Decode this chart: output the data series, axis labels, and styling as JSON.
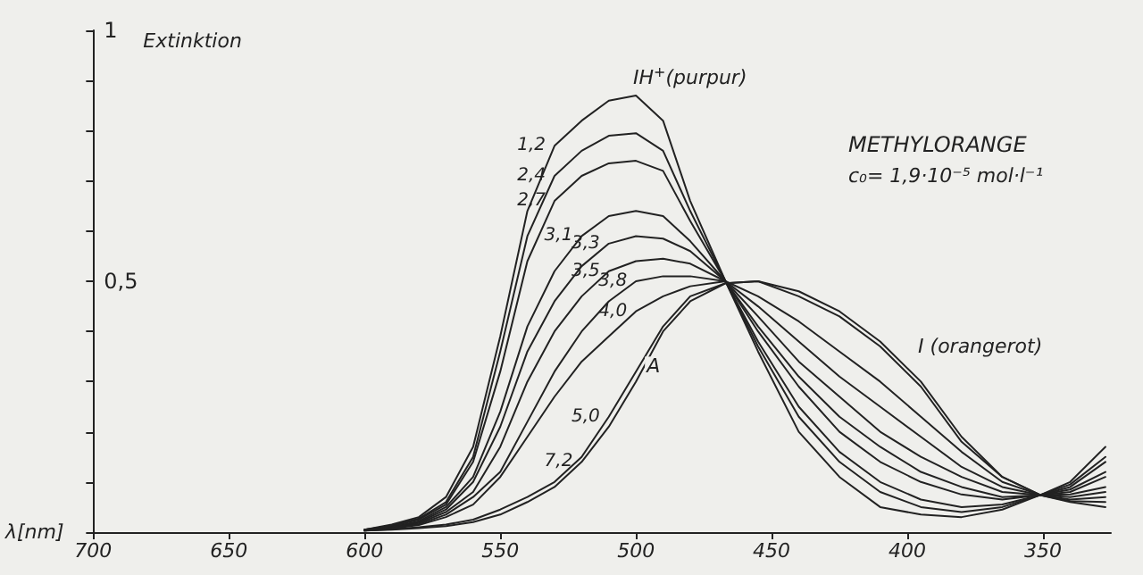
{
  "chart_data": {
    "type": "line",
    "title": "METHYLORANGE",
    "subtitle": "c₀= 1,9·10⁻⁵ mol·l⁻¹",
    "xlabel": "λ[nm]",
    "ylabel": "Extinktion",
    "x": [
      600,
      590,
      580,
      570,
      560,
      550,
      540,
      530,
      520,
      510,
      500,
      490,
      480,
      467,
      455,
      440,
      425,
      410,
      395,
      380,
      365,
      351,
      340,
      327
    ],
    "series": [
      {
        "name": "1,2",
        "color": "#222222",
        "values": [
          0.005,
          0.015,
          0.03,
          0.07,
          0.17,
          0.39,
          0.64,
          0.77,
          0.82,
          0.86,
          0.87,
          0.82,
          0.66,
          0.5,
          0.36,
          0.2,
          0.11,
          0.05,
          0.035,
          0.03,
          0.045,
          0.074,
          0.1,
          0.17
        ]
      },
      {
        "name": "2,4",
        "color": "#222222",
        "values": [
          0.005,
          0.013,
          0.027,
          0.06,
          0.15,
          0.36,
          0.59,
          0.71,
          0.76,
          0.79,
          0.795,
          0.76,
          0.64,
          0.5,
          0.37,
          0.23,
          0.14,
          0.08,
          0.05,
          0.04,
          0.05,
          0.074,
          0.095,
          0.15
        ]
      },
      {
        "name": "2,7",
        "color": "#222222",
        "values": [
          0.005,
          0.012,
          0.025,
          0.055,
          0.14,
          0.32,
          0.54,
          0.66,
          0.71,
          0.735,
          0.74,
          0.72,
          0.62,
          0.5,
          0.38,
          0.25,
          0.16,
          0.1,
          0.065,
          0.05,
          0.055,
          0.074,
          0.09,
          0.14
        ]
      },
      {
        "name": "3,1",
        "color": "#222222",
        "values": [
          0.004,
          0.01,
          0.022,
          0.05,
          0.11,
          0.24,
          0.41,
          0.52,
          0.59,
          0.63,
          0.64,
          0.63,
          0.58,
          0.5,
          0.4,
          0.29,
          0.2,
          0.14,
          0.1,
          0.075,
          0.065,
          0.074,
          0.085,
          0.12
        ]
      },
      {
        "name": "3,3",
        "color": "#222222",
        "values": [
          0.004,
          0.01,
          0.02,
          0.045,
          0.1,
          0.21,
          0.36,
          0.46,
          0.53,
          0.575,
          0.59,
          0.585,
          0.56,
          0.5,
          0.41,
          0.31,
          0.23,
          0.17,
          0.12,
          0.09,
          0.07,
          0.074,
          0.08,
          0.11
        ]
      },
      {
        "name": "3,5",
        "color": "#222222",
        "values": [
          0.004,
          0.009,
          0.018,
          0.04,
          0.08,
          0.17,
          0.3,
          0.4,
          0.47,
          0.52,
          0.54,
          0.545,
          0.535,
          0.5,
          0.43,
          0.34,
          0.27,
          0.2,
          0.15,
          0.11,
          0.08,
          0.074,
          0.075,
          0.09
        ]
      },
      {
        "name": "3,8",
        "color": "#222222",
        "values": [
          0.003,
          0.008,
          0.016,
          0.035,
          0.07,
          0.12,
          0.22,
          0.32,
          0.4,
          0.46,
          0.5,
          0.51,
          0.51,
          0.5,
          0.45,
          0.38,
          0.31,
          0.25,
          0.19,
          0.13,
          0.09,
          0.074,
          0.07,
          0.08
        ]
      },
      {
        "name": "4,0",
        "color": "#222222",
        "values": [
          0.003,
          0.007,
          0.014,
          0.03,
          0.055,
          0.11,
          0.19,
          0.27,
          0.34,
          0.39,
          0.44,
          0.47,
          0.49,
          0.5,
          0.47,
          0.42,
          0.36,
          0.3,
          0.23,
          0.16,
          0.1,
          0.074,
          0.065,
          0.07
        ]
      },
      {
        "name": "5,0",
        "color": "#222222",
        "values": [
          0.003,
          0.006,
          0.01,
          0.015,
          0.025,
          0.045,
          0.07,
          0.1,
          0.15,
          0.23,
          0.32,
          0.41,
          0.47,
          0.496,
          0.5,
          0.47,
          0.43,
          0.37,
          0.29,
          0.18,
          0.11,
          0.074,
          0.062,
          0.06
        ]
      },
      {
        "name": "7,2",
        "color": "#222222",
        "values": [
          0.003,
          0.005,
          0.008,
          0.012,
          0.02,
          0.035,
          0.06,
          0.09,
          0.14,
          0.21,
          0.3,
          0.4,
          0.46,
          0.496,
          0.5,
          0.48,
          0.44,
          0.38,
          0.3,
          0.19,
          0.11,
          0.074,
          0.06,
          0.05
        ]
      }
    ],
    "xlim": [
      700,
      325
    ],
    "xticks": [
      700,
      650,
      600,
      550,
      500,
      450,
      400,
      350
    ],
    "ylim": [
      0,
      1
    ],
    "yticks": [
      {
        "value": 0,
        "label": null
      },
      {
        "value": 0.1,
        "label": null
      },
      {
        "value": 0.2,
        "label": null
      },
      {
        "value": 0.3,
        "label": null
      },
      {
        "value": 0.4,
        "label": null
      },
      {
        "value": 0.5,
        "label": "0,5"
      },
      {
        "value": 0.6,
        "label": null
      },
      {
        "value": 0.7,
        "label": null
      },
      {
        "value": 0.8,
        "label": null
      },
      {
        "value": 0.9,
        "label": null
      },
      {
        "value": 1,
        "label": "1"
      }
    ],
    "annotations": [
      {
        "text": "IH$^{+}$(purpur)",
        "x": 505,
        "y": 0.87
      },
      {
        "text": "I (orangerot)",
        "x": 400,
        "y": 0.34
      },
      {
        "text": "A",
        "x": 500,
        "y": 0.3
      }
    ],
    "grid": false,
    "legend": false,
    "marker": "none",
    "line_style": "solid"
  }
}
